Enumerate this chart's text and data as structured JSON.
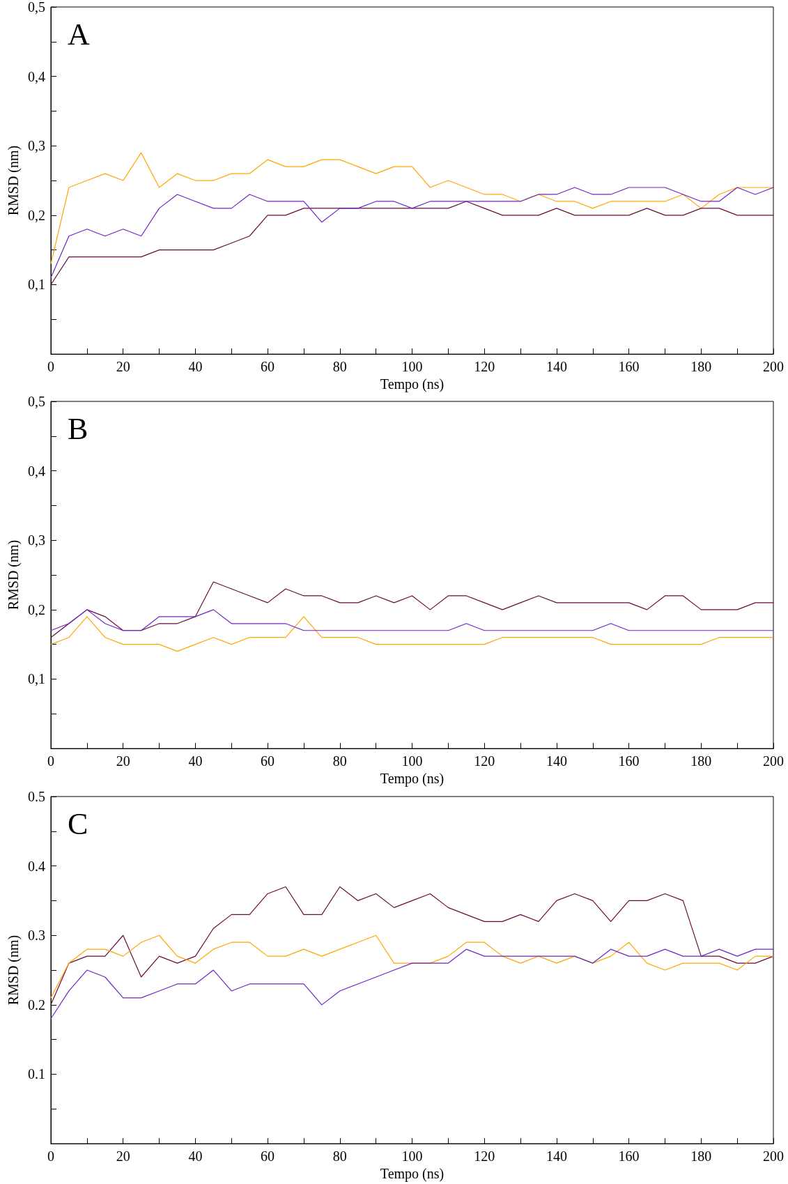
{
  "chart_data": [
    {
      "type": "line",
      "title": "A",
      "xlabel": "Tempo (ns)",
      "ylabel": "RMSD (nm)",
      "marker": "none",
      "line_style": "solid",
      "xlim": [
        0,
        200
      ],
      "ylim": [
        0,
        0.5
      ],
      "xticks": [
        0,
        {
          "value": 10,
          "label": null
        },
        20,
        {
          "value": 30,
          "label": null
        },
        40,
        {
          "value": 50,
          "label": null
        },
        60,
        {
          "value": 70,
          "label": null
        },
        80,
        {
          "value": 90,
          "label": null
        },
        100,
        {
          "value": 110,
          "label": null
        },
        120,
        {
          "value": 130,
          "label": null
        },
        140,
        {
          "value": 150,
          "label": null
        },
        160,
        {
          "value": 170,
          "label": null
        },
        180,
        {
          "value": 190,
          "label": null
        },
        200
      ],
      "yticks": [
        {
          "value": 0.05,
          "label": null
        },
        {
          "value": 0.1,
          "label": "0,1"
        },
        {
          "value": 0.15,
          "label": null
        },
        {
          "value": 0.2,
          "label": "0,2"
        },
        {
          "value": 0.25,
          "label": null
        },
        {
          "value": 0.3,
          "label": "0,3"
        },
        {
          "value": 0.35,
          "label": null
        },
        {
          "value": 0.4,
          "label": "0,4"
        },
        {
          "value": 0.45,
          "label": null
        },
        {
          "value": 0.5,
          "label": "0,5"
        }
      ],
      "x": [
        0,
        5,
        10,
        15,
        20,
        25,
        30,
        35,
        40,
        45,
        50,
        55,
        60,
        65,
        70,
        75,
        80,
        85,
        90,
        95,
        100,
        105,
        110,
        115,
        120,
        125,
        130,
        135,
        140,
        145,
        150,
        155,
        160,
        165,
        170,
        175,
        180,
        185,
        190,
        195,
        200
      ],
      "series": [
        {
          "color": "#ffa500",
          "values": [
            0.13,
            0.24,
            0.25,
            0.26,
            0.25,
            0.29,
            0.24,
            0.26,
            0.25,
            0.25,
            0.26,
            0.26,
            0.28,
            0.27,
            0.27,
            0.28,
            0.28,
            0.27,
            0.26,
            0.27,
            0.27,
            0.24,
            0.25,
            0.24,
            0.23,
            0.23,
            0.22,
            0.23,
            0.22,
            0.22,
            0.21,
            0.22,
            0.22,
            0.22,
            0.22,
            0.23,
            0.21,
            0.23,
            0.24,
            0.24,
            0.24
          ]
        },
        {
          "color": "#6a0a42",
          "values": [
            0.1,
            0.14,
            0.14,
            0.14,
            0.14,
            0.14,
            0.15,
            0.15,
            0.15,
            0.15,
            0.16,
            0.17,
            0.2,
            0.2,
            0.21,
            0.21,
            0.21,
            0.21,
            0.21,
            0.21,
            0.21,
            0.21,
            0.21,
            0.22,
            0.21,
            0.2,
            0.2,
            0.2,
            0.21,
            0.2,
            0.2,
            0.2,
            0.2,
            0.21,
            0.2,
            0.2,
            0.21,
            0.21,
            0.2,
            0.2,
            0.2
          ]
        },
        {
          "color": "#6e24c4",
          "values": [
            0.11,
            0.17,
            0.18,
            0.17,
            0.18,
            0.17,
            0.21,
            0.23,
            0.22,
            0.21,
            0.21,
            0.23,
            0.22,
            0.22,
            0.22,
            0.19,
            0.21,
            0.21,
            0.22,
            0.22,
            0.21,
            0.22,
            0.22,
            0.22,
            0.22,
            0.22,
            0.22,
            0.23,
            0.23,
            0.24,
            0.23,
            0.23,
            0.24,
            0.24,
            0.24,
            0.23,
            0.22,
            0.22,
            0.24,
            0.23,
            0.24
          ]
        }
      ]
    },
    {
      "type": "line",
      "title": "B",
      "xlabel": "Tempo (ns)",
      "ylabel": "RMSD (nm)",
      "marker": "none",
      "line_style": "solid",
      "xlim": [
        0,
        200
      ],
      "ylim": [
        0,
        0.5
      ],
      "xticks": [
        0,
        {
          "value": 10,
          "label": null
        },
        20,
        {
          "value": 30,
          "label": null
        },
        40,
        {
          "value": 50,
          "label": null
        },
        60,
        {
          "value": 70,
          "label": null
        },
        80,
        {
          "value": 90,
          "label": null
        },
        100,
        {
          "value": 110,
          "label": null
        },
        120,
        {
          "value": 130,
          "label": null
        },
        140,
        {
          "value": 150,
          "label": null
        },
        160,
        {
          "value": 170,
          "label": null
        },
        180,
        {
          "value": 190,
          "label": null
        },
        200
      ],
      "yticks": [
        {
          "value": 0.05,
          "label": null
        },
        {
          "value": 0.1,
          "label": "0,1"
        },
        {
          "value": 0.15,
          "label": null
        },
        {
          "value": 0.2,
          "label": "0,2"
        },
        {
          "value": 0.25,
          "label": null
        },
        {
          "value": 0.3,
          "label": "0,3"
        },
        {
          "value": 0.35,
          "label": null
        },
        {
          "value": 0.4,
          "label": "0,4"
        },
        {
          "value": 0.45,
          "label": null
        },
        {
          "value": 0.5,
          "label": "0,5"
        }
      ],
      "x": [
        0,
        5,
        10,
        15,
        20,
        25,
        30,
        35,
        40,
        45,
        50,
        55,
        60,
        65,
        70,
        75,
        80,
        85,
        90,
        95,
        100,
        105,
        110,
        115,
        120,
        125,
        130,
        135,
        140,
        145,
        150,
        155,
        160,
        165,
        170,
        175,
        180,
        185,
        190,
        195,
        200
      ],
      "series": [
        {
          "color": "#6a0a42",
          "values": [
            0.16,
            0.18,
            0.2,
            0.19,
            0.17,
            0.17,
            0.18,
            0.18,
            0.19,
            0.24,
            0.23,
            0.22,
            0.21,
            0.23,
            0.22,
            0.22,
            0.21,
            0.21,
            0.22,
            0.21,
            0.22,
            0.2,
            0.22,
            0.22,
            0.21,
            0.2,
            0.21,
            0.22,
            0.21,
            0.21,
            0.21,
            0.21,
            0.21,
            0.2,
            0.22,
            0.22,
            0.2,
            0.2,
            0.2,
            0.21,
            0.21
          ]
        },
        {
          "color": "#ffa500",
          "values": [
            0.15,
            0.16,
            0.19,
            0.16,
            0.15,
            0.15,
            0.15,
            0.14,
            0.15,
            0.16,
            0.15,
            0.16,
            0.16,
            0.16,
            0.19,
            0.16,
            0.16,
            0.16,
            0.15,
            0.15,
            0.15,
            0.15,
            0.15,
            0.15,
            0.15,
            0.16,
            0.16,
            0.16,
            0.16,
            0.16,
            0.16,
            0.15,
            0.15,
            0.15,
            0.15,
            0.15,
            0.15,
            0.16,
            0.16,
            0.16,
            0.16
          ]
        },
        {
          "color": "#6e24c4",
          "values": [
            0.17,
            0.18,
            0.2,
            0.18,
            0.17,
            0.17,
            0.19,
            0.19,
            0.19,
            0.2,
            0.18,
            0.18,
            0.18,
            0.18,
            0.17,
            0.17,
            0.17,
            0.17,
            0.17,
            0.17,
            0.17,
            0.17,
            0.17,
            0.18,
            0.17,
            0.17,
            0.17,
            0.17,
            0.17,
            0.17,
            0.17,
            0.18,
            0.17,
            0.17,
            0.17,
            0.17,
            0.17,
            0.17,
            0.17,
            0.17,
            0.17
          ]
        }
      ]
    },
    {
      "type": "line",
      "title": "C",
      "xlabel": "Tempo (ns)",
      "ylabel": "RMSD (nm)",
      "marker": "none",
      "line_style": "solid",
      "xlim": [
        0,
        200
      ],
      "ylim": [
        0,
        0.5
      ],
      "xticks": [
        0,
        {
          "value": 10,
          "label": null
        },
        20,
        {
          "value": 30,
          "label": null
        },
        40,
        {
          "value": 50,
          "label": null
        },
        60,
        {
          "value": 70,
          "label": null
        },
        80,
        {
          "value": 90,
          "label": null
        },
        100,
        {
          "value": 110,
          "label": null
        },
        120,
        {
          "value": 130,
          "label": null
        },
        140,
        {
          "value": 150,
          "label": null
        },
        160,
        {
          "value": 170,
          "label": null
        },
        180,
        {
          "value": 190,
          "label": null
        },
        200
      ],
      "yticks": [
        {
          "value": 0.05,
          "label": null
        },
        0.1,
        {
          "value": 0.15,
          "label": null
        },
        0.2,
        {
          "value": 0.25,
          "label": null
        },
        0.3,
        {
          "value": 0.35,
          "label": null
        },
        0.4,
        {
          "value": 0.45,
          "label": null
        },
        0.5
      ],
      "x": [
        0,
        5,
        10,
        15,
        20,
        25,
        30,
        35,
        40,
        45,
        50,
        55,
        60,
        65,
        70,
        75,
        80,
        85,
        90,
        95,
        100,
        105,
        110,
        115,
        120,
        125,
        130,
        135,
        140,
        145,
        150,
        155,
        160,
        165,
        170,
        175,
        180,
        185,
        190,
        195,
        200
      ],
      "series": [
        {
          "color": "#6a0a42",
          "values": [
            0.2,
            0.26,
            0.27,
            0.27,
            0.3,
            0.24,
            0.27,
            0.26,
            0.27,
            0.31,
            0.33,
            0.33,
            0.36,
            0.37,
            0.33,
            0.33,
            0.37,
            0.35,
            0.36,
            0.34,
            0.35,
            0.36,
            0.34,
            0.33,
            0.32,
            0.32,
            0.33,
            0.32,
            0.35,
            0.36,
            0.35,
            0.32,
            0.35,
            0.35,
            0.36,
            0.35,
            0.27,
            0.27,
            0.26,
            0.26,
            0.27
          ]
        },
        {
          "color": "#ffa500",
          "values": [
            0.21,
            0.26,
            0.28,
            0.28,
            0.27,
            0.29,
            0.3,
            0.27,
            0.26,
            0.28,
            0.29,
            0.29,
            0.27,
            0.27,
            0.28,
            0.27,
            0.28,
            0.29,
            0.3,
            0.26,
            0.26,
            0.26,
            0.27,
            0.29,
            0.29,
            0.27,
            0.26,
            0.27,
            0.26,
            0.27,
            0.26,
            0.27,
            0.29,
            0.26,
            0.25,
            0.26,
            0.26,
            0.26,
            0.25,
            0.27,
            0.27
          ]
        },
        {
          "color": "#6e24c4",
          "values": [
            0.18,
            0.22,
            0.25,
            0.24,
            0.21,
            0.21,
            0.22,
            0.23,
            0.23,
            0.25,
            0.22,
            0.23,
            0.23,
            0.23,
            0.23,
            0.2,
            0.22,
            0.23,
            0.24,
            0.25,
            0.26,
            0.26,
            0.26,
            0.28,
            0.27,
            0.27,
            0.27,
            0.27,
            0.27,
            0.27,
            0.26,
            0.28,
            0.27,
            0.27,
            0.28,
            0.27,
            0.27,
            0.28,
            0.27,
            0.28,
            0.28
          ]
        }
      ]
    }
  ]
}
